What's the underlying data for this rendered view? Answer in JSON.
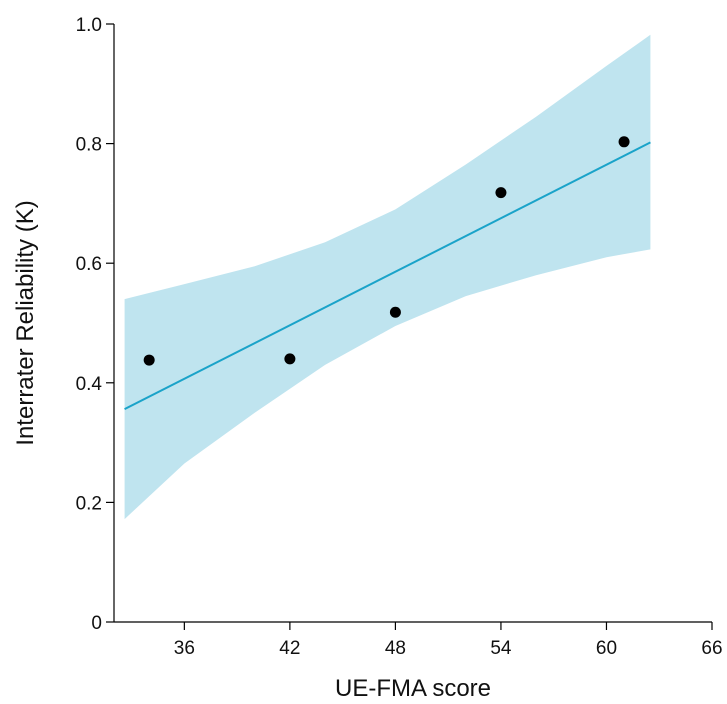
{
  "chart_data": {
    "type": "scatter",
    "xlabel": "UE-FMA score",
    "ylabel": "Interrater Reliability (K)",
    "xlim": [
      32,
      66
    ],
    "ylim": [
      0,
      1.0
    ],
    "x_ticks": [
      36,
      42,
      48,
      54,
      60,
      66
    ],
    "y_ticks": [
      0,
      0.2,
      0.4,
      0.6,
      0.8,
      1.0
    ],
    "x_tick_labels": [
      "36",
      "42",
      "48",
      "54",
      "60",
      "66"
    ],
    "y_tick_labels": [
      "0",
      "0.2",
      "0.4",
      "0.6",
      "0.8",
      "1.0"
    ],
    "points": [
      {
        "x": 34.0,
        "y": 0.438
      },
      {
        "x": 42.0,
        "y": 0.44
      },
      {
        "x": 48.0,
        "y": 0.518
      },
      {
        "x": 54.0,
        "y": 0.718
      },
      {
        "x": 61.0,
        "y": 0.803
      }
    ],
    "regression_line": {
      "x": [
        32.6,
        62.5
      ],
      "y": [
        0.356,
        0.802
      ]
    },
    "confidence_band": {
      "x": [
        32.6,
        36,
        40,
        44,
        48,
        52,
        56,
        60,
        62.5
      ],
      "upper": [
        0.54,
        0.565,
        0.595,
        0.635,
        0.69,
        0.765,
        0.845,
        0.93,
        0.982
      ],
      "lower": [
        0.172,
        0.265,
        0.35,
        0.43,
        0.495,
        0.545,
        0.58,
        0.61,
        0.623
      ]
    },
    "colors": {
      "line": "#1aa3c9",
      "band": "#bfe4ef",
      "points": "#000000"
    },
    "grid": false,
    "legend": "none"
  }
}
